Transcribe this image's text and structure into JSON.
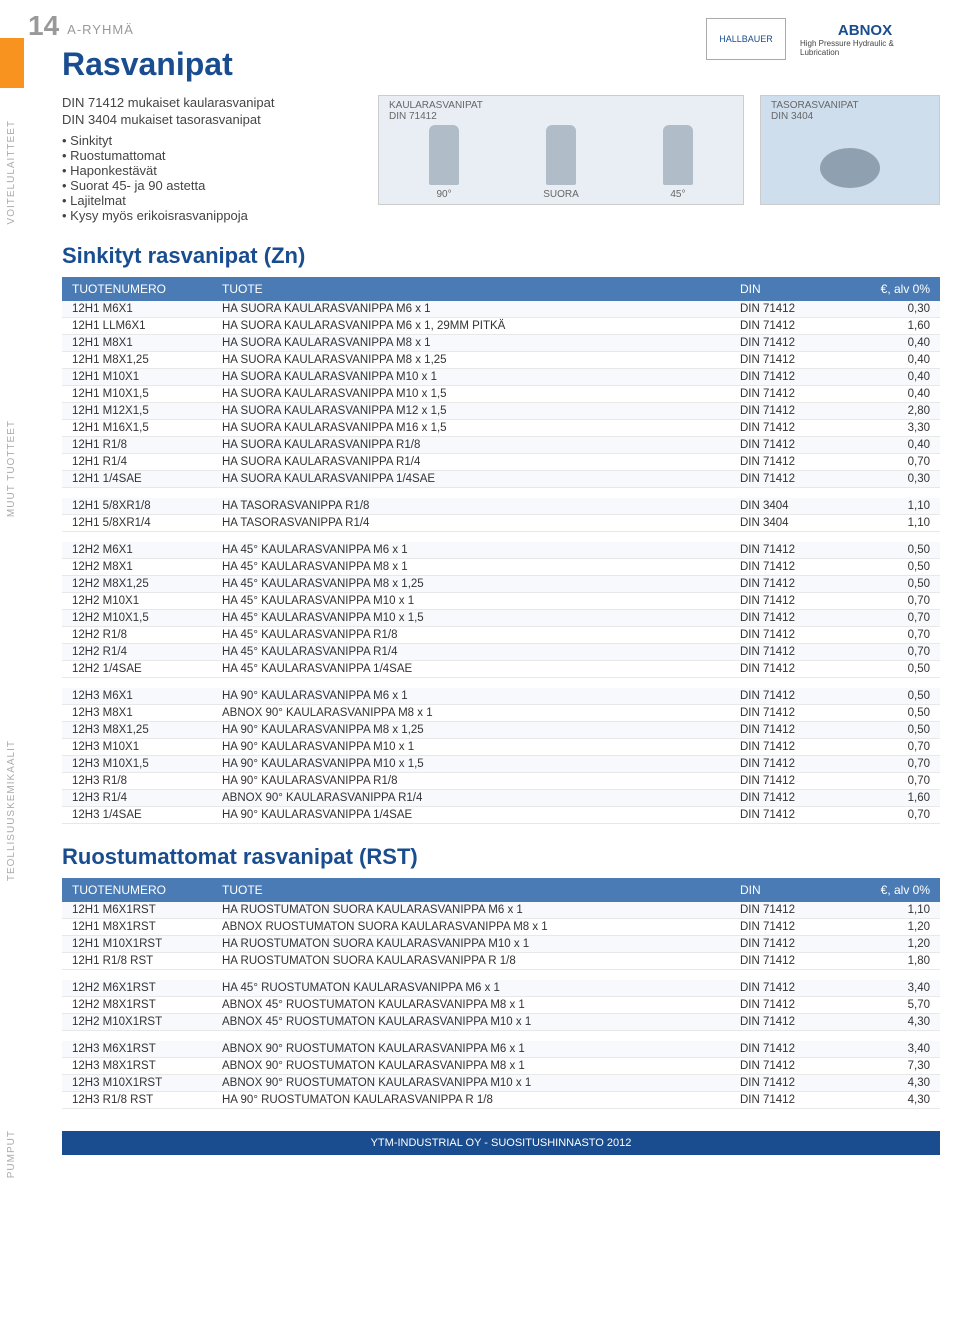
{
  "page_number": "14",
  "group_label": "A-RYHMÄ",
  "title": "Rasvanipat",
  "logo1": "HALLBAUER",
  "logo2_brand": "ABNOX",
  "logo2_sub": "High Pressure Hydraulic & Lubrication",
  "desc": {
    "l1": "DIN 71412 mukaiset kaularasvanipat",
    "l2": "DIN 3404 mukaiset tasorasvanipat",
    "b1": "Sinkityt",
    "b2": "Ruostumattomat",
    "b3": "Haponkestävät",
    "b4": "Suorat 45- ja 90 astetta",
    "b5": "Lajitelmat",
    "b6": "Kysy myös erikoisrasvanippoja"
  },
  "fig1": {
    "cap": "KAULARASVANIPAT",
    "sub": "DIN 71412",
    "a": "90°",
    "b": "SUORA",
    "c": "45°"
  },
  "fig2": {
    "cap": "TASORASVANIPAT",
    "sub": "DIN 3404"
  },
  "section1": "Sinkityt rasvanipat (Zn)",
  "section2": "Ruostumattomat rasvanipat (RST)",
  "thead": {
    "c1": "TUOTENUMERO",
    "c2": "TUOTE",
    "c3": "DIN",
    "c4": "€, alv 0%"
  },
  "sidetabs": {
    "t1": "VOITELULAITTEET",
    "t2": "MUUT TUOTTEET",
    "t3": "TEOLLISUUSKEMIKAALIT",
    "t4": "PUMPUT"
  },
  "footer": "YTM-INDUSTRIAL OY - SUOSITUSHINNASTO 2012",
  "g1": [
    {
      "c1": "12H1 M6X1",
      "c2": "HA SUORA KAULARASVANIPPA M6 x 1",
      "c3": "DIN 71412",
      "c4": "0,30"
    },
    {
      "c1": "12H1 LLM6X1",
      "c2": "HA SUORA KAULARASVANIPPA M6 x 1, 29MM PITKÄ",
      "c3": "DIN 71412",
      "c4": "1,60"
    },
    {
      "c1": "12H1 M8X1",
      "c2": "HA SUORA KAULARASVANIPPA M8 x 1",
      "c3": "DIN 71412",
      "c4": "0,40"
    },
    {
      "c1": "12H1 M8X1,25",
      "c2": "HA SUORA KAULARASVANIPPA M8 x 1,25",
      "c3": "DIN 71412",
      "c4": "0,40"
    },
    {
      "c1": "12H1 M10X1",
      "c2": "HA SUORA KAULARASVANIPPA M10 x 1",
      "c3": "DIN 71412",
      "c4": "0,40"
    },
    {
      "c1": "12H1 M10X1,5",
      "c2": "HA SUORA KAULARASVANIPPA M10 x 1,5",
      "c3": "DIN 71412",
      "c4": "0,40"
    },
    {
      "c1": "12H1 M12X1,5",
      "c2": "HA SUORA KAULARASVANIPPA M12 x 1,5",
      "c3": "DIN 71412",
      "c4": "2,80"
    },
    {
      "c1": "12H1 M16X1,5",
      "c2": "HA SUORA KAULARASVANIPPA M16 x 1,5",
      "c3": "DIN 71412",
      "c4": "3,30"
    },
    {
      "c1": "12H1 R1/8",
      "c2": "HA SUORA KAULARASVANIPPA R1/8",
      "c3": "DIN 71412",
      "c4": "0,40"
    },
    {
      "c1": "12H1 R1/4",
      "c2": "HA SUORA KAULARASVANIPPA R1/4",
      "c3": "DIN 71412",
      "c4": "0,70"
    },
    {
      "c1": "12H1 1/4SAE",
      "c2": "HA SUORA KAULARASVANIPPA 1/4SAE",
      "c3": "DIN 71412",
      "c4": "0,30"
    }
  ],
  "g2": [
    {
      "c1": "12H1 5/8XR1/8",
      "c2": "HA TASORASVANIPPA R1/8",
      "c3": "DIN 3404",
      "c4": "1,10"
    },
    {
      "c1": "12H1 5/8XR1/4",
      "c2": "HA TASORASVANIPPA R1/4",
      "c3": "DIN 3404",
      "c4": "1,10"
    }
  ],
  "g3": [
    {
      "c1": "12H2 M6X1",
      "c2": "HA 45° KAULARASVANIPPA M6 x 1",
      "c3": "DIN 71412",
      "c4": "0,50"
    },
    {
      "c1": "12H2 M8X1",
      "c2": "HA 45° KAULARASVANIPPA M8 x 1",
      "c3": "DIN 71412",
      "c4": "0,50"
    },
    {
      "c1": "12H2 M8X1,25",
      "c2": "HA 45° KAULARASVANIPPA M8 x 1,25",
      "c3": "DIN 71412",
      "c4": "0,50"
    },
    {
      "c1": "12H2 M10X1",
      "c2": "HA 45° KAULARASVANIPPA M10 x 1",
      "c3": "DIN 71412",
      "c4": "0,70"
    },
    {
      "c1": "12H2 M10X1,5",
      "c2": "HA 45° KAULARASVANIPPA M10 x 1,5",
      "c3": "DIN 71412",
      "c4": "0,70"
    },
    {
      "c1": "12H2 R1/8",
      "c2": "HA 45° KAULARASVANIPPA R1/8",
      "c3": "DIN 71412",
      "c4": "0,70"
    },
    {
      "c1": "12H2 R1/4",
      "c2": "HA 45° KAULARASVANIPPA R1/4",
      "c3": "DIN 71412",
      "c4": "0,70"
    },
    {
      "c1": "12H2 1/4SAE",
      "c2": "HA 45° KAULARASVANIPPA 1/4SAE",
      "c3": "DIN 71412",
      "c4": "0,50"
    }
  ],
  "g4": [
    {
      "c1": "12H3 M6X1",
      "c2": "HA 90° KAULARASVANIPPA M6 x 1",
      "c3": "DIN 71412",
      "c4": "0,50"
    },
    {
      "c1": "12H3 M8X1",
      "c2": "ABNOX 90° KAULARASVANIPPA M8 x 1",
      "c3": "DIN 71412",
      "c4": "0,50"
    },
    {
      "c1": "12H3 M8X1,25",
      "c2": "HA 90° KAULARASVANIPPA M8 x 1,25",
      "c3": "DIN 71412",
      "c4": "0,50"
    },
    {
      "c1": "12H3 M10X1",
      "c2": "HA 90° KAULARASVANIPPA M10 x 1",
      "c3": "DIN 71412",
      "c4": "0,70"
    },
    {
      "c1": "12H3 M10X1,5",
      "c2": "HA 90° KAULARASVANIPPA M10 x 1,5",
      "c3": "DIN 71412",
      "c4": "0,70"
    },
    {
      "c1": "12H3 R1/8",
      "c2": "HA 90° KAULARASVANIPPA R1/8",
      "c3": "DIN 71412",
      "c4": "0,70"
    },
    {
      "c1": "12H3 R1/4",
      "c2": "ABNOX 90° KAULARASVANIPPA R1/4",
      "c3": "DIN 71412",
      "c4": "1,60"
    },
    {
      "c1": "12H3 1/4SAE",
      "c2": "HA 90° KAULARASVANIPPA 1/4SAE",
      "c3": "DIN 71412",
      "c4": "0,70"
    }
  ],
  "r1": [
    {
      "c1": "12H1 M6X1RST",
      "c2": "HA RUOSTUMATON SUORA KAULARASVANIPPA M6 x 1",
      "c3": "DIN 71412",
      "c4": "1,10"
    },
    {
      "c1": "12H1 M8X1RST",
      "c2": "ABNOX RUOSTUMATON SUORA KAULARASVANIPPA M8 x 1",
      "c3": "DIN 71412",
      "c4": "1,20"
    },
    {
      "c1": "12H1 M10X1RST",
      "c2": "HA RUOSTUMATON SUORA KAULARASVANIPPA M10 x 1",
      "c3": "DIN 71412",
      "c4": "1,20"
    },
    {
      "c1": "12H1 R1/8 RST",
      "c2": "HA RUOSTUMATON SUORA KAULARASVANIPPA R 1/8",
      "c3": "DIN 71412",
      "c4": "1,80"
    }
  ],
  "r2": [
    {
      "c1": "12H2 M6X1RST",
      "c2": "HA 45° RUOSTUMATON KAULARASVANIPPA M6 x 1",
      "c3": "DIN 71412",
      "c4": "3,40"
    },
    {
      "c1": "12H2 M8X1RST",
      "c2": "ABNOX 45° RUOSTUMATON KAULARASVANIPPA M8 x 1",
      "c3": "DIN 71412",
      "c4": "5,70"
    },
    {
      "c1": "12H2 M10X1RST",
      "c2": "ABNOX 45° RUOSTUMATON KAULARASVANIPPA M10 x 1",
      "c3": "DIN 71412",
      "c4": "4,30"
    }
  ],
  "r3": [
    {
      "c1": "12H3 M6X1RST",
      "c2": "ABNOX 90° RUOSTUMATON KAULARASVANIPPA M6 x 1",
      "c3": "DIN 71412",
      "c4": "3,40"
    },
    {
      "c1": "12H3 M8X1RST",
      "c2": "ABNOX 90° RUOSTUMATON KAULARASVANIPPA M8 x 1",
      "c3": "DIN 71412",
      "c4": "7,30"
    },
    {
      "c1": "12H3 M10X1RST",
      "c2": "ABNOX 90° RUOSTUMATON KAULARASVANIPPA M10 x 1",
      "c3": "DIN 71412",
      "c4": "4,30"
    },
    {
      "c1": "12H3 R1/8 RST",
      "c2": "HA 90° RUOSTUMATON KAULARASVANIPPA R 1/8",
      "c3": "DIN 71412",
      "c4": "4,30"
    }
  ]
}
